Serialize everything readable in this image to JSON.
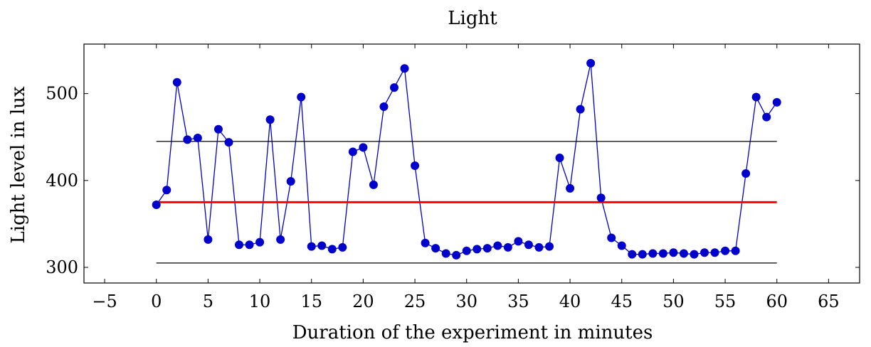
{
  "chart_data": {
    "type": "line",
    "title": "Light",
    "xlabel": "Duration of the experiment in minutes",
    "ylabel": "Light level in lux",
    "xlim": [
      -7,
      68
    ],
    "ylim": [
      282,
      557
    ],
    "x_ticks": [
      -5,
      0,
      5,
      10,
      15,
      20,
      25,
      30,
      35,
      40,
      45,
      50,
      55,
      60,
      65
    ],
    "y_ticks": [
      300,
      400,
      500
    ],
    "grid": false,
    "series": [
      {
        "color": "#0000cc",
        "marker": "circle",
        "x": [
          0,
          1,
          2,
          3,
          4,
          5,
          6,
          7,
          8,
          9,
          10,
          11,
          12,
          13,
          14,
          15,
          16,
          17,
          18,
          19,
          20,
          21,
          22,
          23,
          24,
          25,
          26,
          27,
          28,
          29,
          30,
          31,
          32,
          33,
          34,
          35,
          36,
          37,
          38,
          39,
          40,
          41,
          42,
          43,
          44,
          45,
          46,
          47,
          48,
          49,
          50,
          51,
          52,
          53,
          54,
          55,
          56,
          57,
          58,
          59,
          60
        ],
        "values": [
          372,
          389,
          513,
          447,
          449,
          332,
          459,
          444,
          326,
          326,
          329,
          470,
          332,
          399,
          496,
          324,
          325,
          321,
          323,
          433,
          438,
          395,
          485,
          507,
          529,
          417,
          328,
          322,
          316,
          314,
          319,
          321,
          322,
          325,
          323,
          330,
          326,
          323,
          324,
          426,
          391,
          482,
          535,
          380,
          334,
          325,
          315,
          315,
          316,
          316,
          317,
          316,
          315,
          317,
          317,
          319,
          319,
          408,
          496,
          473,
          490
        ]
      },
      {
        "color": "#ff0000",
        "x": [
          0,
          60
        ],
        "values": [
          375,
          375
        ]
      },
      {
        "color": "#000000",
        "x": [
          0,
          60
        ],
        "values": [
          445,
          445
        ]
      },
      {
        "color": "#000000",
        "x": [
          0,
          60
        ],
        "values": [
          305,
          305
        ]
      }
    ]
  }
}
